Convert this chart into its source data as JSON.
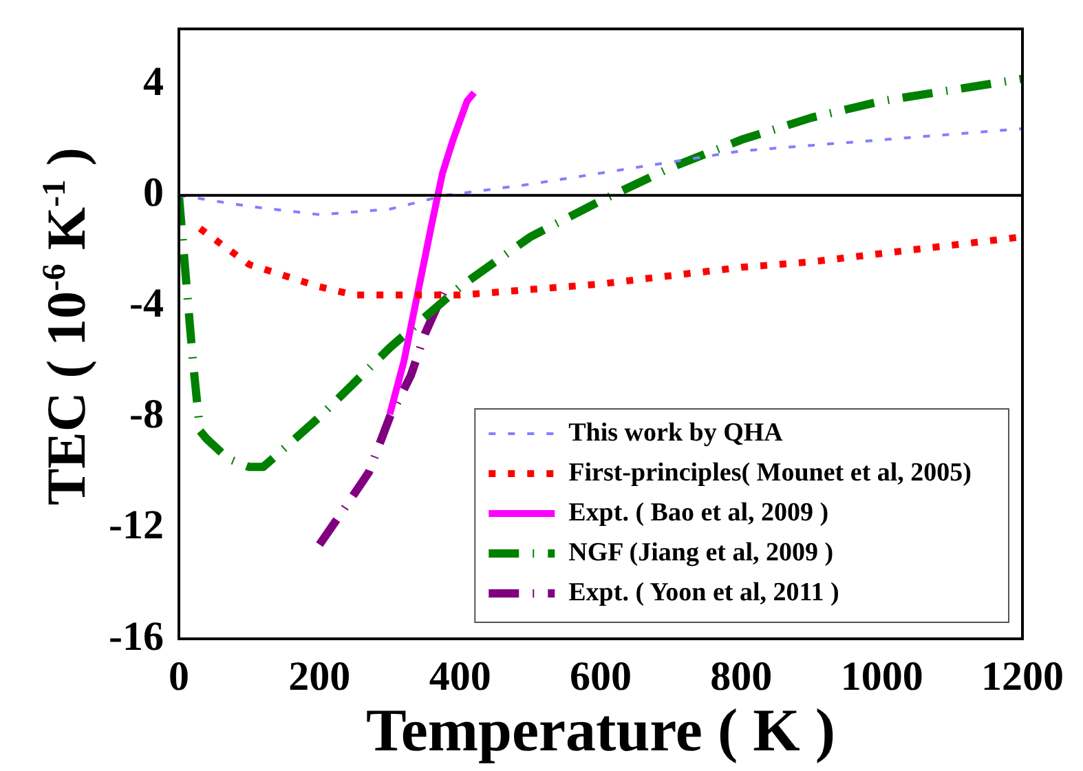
{
  "chart_data": {
    "type": "line",
    "xlabel": "Temperature ( K )",
    "ylabel": "TEC ( 10$^{-6}$ K$^{-1}$ )",
    "xlim": [
      0,
      1200
    ],
    "xticks": [
      0,
      200,
      400,
      600,
      800,
      1000,
      1200
    ],
    "ylim": [
      -16,
      6
    ],
    "yticks": [
      -16,
      -12,
      -8,
      -4,
      0,
      4
    ],
    "grid": false,
    "legend": "bottom right",
    "marker": "none",
    "ref_lines": [
      {
        "axis": "y",
        "value": 0,
        "color": "#000000"
      }
    ],
    "series": [
      {
        "name": "This work by QHA",
        "color": "#8080ff",
        "line_style": "dotted",
        "x": [
          0,
          100,
          200,
          300,
          380,
          500,
          600,
          700,
          800,
          900,
          1000,
          1100,
          1200
        ],
        "values": [
          0,
          -0.4,
          -0.7,
          -0.5,
          0,
          0.4,
          0.8,
          1.2,
          1.6,
          1.8,
          2.0,
          2.2,
          2.4
        ]
      },
      {
        "name": "First-principles( Mounet et al, 2005)",
        "color": "#ff0000",
        "line_style": "dotted",
        "x": [
          30,
          100,
          200,
          250,
          300,
          400,
          500,
          600,
          700,
          800,
          900,
          1000,
          1100,
          1200
        ],
        "values": [
          -1.2,
          -2.5,
          -3.3,
          -3.6,
          -3.6,
          -3.6,
          -3.4,
          -3.2,
          -2.9,
          -2.6,
          -2.4,
          -2.1,
          -1.8,
          -1.5
        ]
      },
      {
        "name": "Expt. ( Bao et al, 2009 )",
        "color": "#ff00ff",
        "line_style": "solid",
        "x": [
          300,
          320,
          340,
          360,
          375,
          390,
          410,
          420
        ],
        "values": [
          -7.9,
          -6,
          -3.5,
          -1,
          0.8,
          2,
          3.4,
          3.7
        ]
      },
      {
        "name": "NGF (Jiang et al, 2009 )",
        "color": "#008000",
        "line_style": "dashed",
        "x": [
          0,
          10,
          20,
          30,
          40,
          70,
          100,
          120,
          200,
          300,
          400,
          500,
          600,
          700,
          800,
          900,
          1000,
          1100,
          1200
        ],
        "values": [
          0,
          -3,
          -6,
          -8.5,
          -8.8,
          -9.5,
          -9.8,
          -9.8,
          -8,
          -5.5,
          -3.3,
          -1.5,
          -0.2,
          1.0,
          2.0,
          2.8,
          3.4,
          3.8,
          4.2
        ]
      },
      {
        "name": "Expt. ( Yoon et al, 2011 )",
        "color": "#800080",
        "line_style": "dashed",
        "x": [
          200,
          230,
          270,
          300,
          330,
          350,
          380
        ],
        "values": [
          -12.6,
          -11.5,
          -10,
          -8,
          -6.5,
          -5,
          -3.3
        ]
      }
    ]
  }
}
